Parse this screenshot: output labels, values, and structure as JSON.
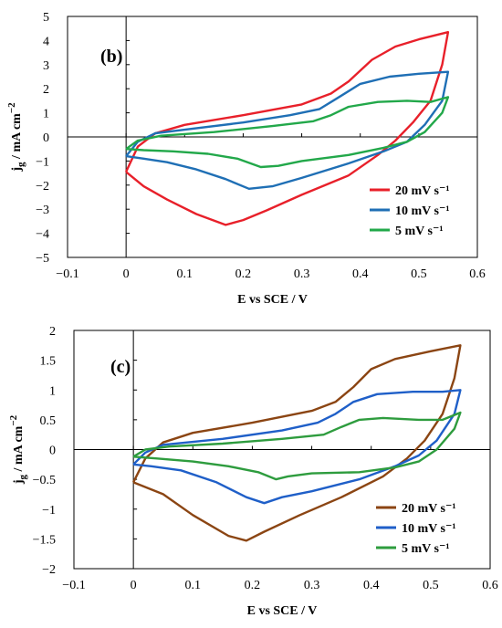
{
  "chart_data": [
    {
      "type": "line",
      "panel_label": "(b)",
      "xlabel": "E vs SCE / V",
      "ylabel_main": "j",
      "ylabel_sub": "g",
      "ylabel_rest": " / mA cm",
      "ylabel_sup": "−2",
      "xlim": [
        -0.1,
        0.6
      ],
      "ylim": [
        -5,
        5
      ],
      "xticks": [
        "−0.1",
        "0",
        "0.1",
        "0.2",
        "0.3",
        "0.4",
        "0.5",
        "0.6"
      ],
      "yticks": [
        "−5",
        "−4",
        "−3",
        "−2",
        "−1",
        "0",
        "1",
        "2",
        "3",
        "4",
        "5"
      ],
      "legend_position": "bottom-right",
      "series": [
        {
          "name": "20 mV s⁻¹",
          "color": "#e8202a",
          "points": [
            [
              0,
              -1.45
            ],
            [
              0.02,
              -0.4
            ],
            [
              0.05,
              0.15
            ],
            [
              0.1,
              0.5
            ],
            [
              0.2,
              0.9
            ],
            [
              0.3,
              1.35
            ],
            [
              0.35,
              1.8
            ],
            [
              0.38,
              2.3
            ],
            [
              0.42,
              3.2
            ],
            [
              0.46,
              3.75
            ],
            [
              0.5,
              4.05
            ],
            [
              0.55,
              4.35
            ],
            [
              0.54,
              3.0
            ],
            [
              0.52,
              1.5
            ],
            [
              0.49,
              0.6
            ],
            [
              0.46,
              -0.15
            ],
            [
              0.43,
              -0.75
            ],
            [
              0.38,
              -1.6
            ],
            [
              0.3,
              -2.4
            ],
            [
              0.24,
              -3.05
            ],
            [
              0.2,
              -3.45
            ],
            [
              0.17,
              -3.65
            ],
            [
              0.12,
              -3.2
            ],
            [
              0.07,
              -2.6
            ],
            [
              0.03,
              -2.05
            ],
            [
              0,
              -1.45
            ]
          ]
        },
        {
          "name": "10 mV s⁻¹",
          "color": "#1f6fb5",
          "points": [
            [
              0,
              -0.8
            ],
            [
              0.02,
              -0.2
            ],
            [
              0.05,
              0.15
            ],
            [
              0.1,
              0.3
            ],
            [
              0.2,
              0.6
            ],
            [
              0.28,
              0.9
            ],
            [
              0.33,
              1.15
            ],
            [
              0.36,
              1.6
            ],
            [
              0.4,
              2.2
            ],
            [
              0.45,
              2.5
            ],
            [
              0.5,
              2.62
            ],
            [
              0.55,
              2.7
            ],
            [
              0.54,
              1.5
            ],
            [
              0.51,
              0.5
            ],
            [
              0.48,
              -0.2
            ],
            [
              0.44,
              -0.6
            ],
            [
              0.38,
              -1.1
            ],
            [
              0.3,
              -1.7
            ],
            [
              0.25,
              -2.05
            ],
            [
              0.21,
              -2.15
            ],
            [
              0.17,
              -1.75
            ],
            [
              0.12,
              -1.35
            ],
            [
              0.07,
              -1.05
            ],
            [
              0.03,
              -0.9
            ],
            [
              0,
              -0.8
            ]
          ]
        },
        {
          "name": "5 mV s⁻¹",
          "color": "#22a84a",
          "points": [
            [
              0,
              -0.5
            ],
            [
              0.02,
              -0.15
            ],
            [
              0.06,
              0.05
            ],
            [
              0.15,
              0.2
            ],
            [
              0.25,
              0.45
            ],
            [
              0.32,
              0.65
            ],
            [
              0.35,
              0.9
            ],
            [
              0.38,
              1.25
            ],
            [
              0.43,
              1.45
            ],
            [
              0.48,
              1.5
            ],
            [
              0.52,
              1.45
            ],
            [
              0.55,
              1.65
            ],
            [
              0.54,
              1.0
            ],
            [
              0.51,
              0.2
            ],
            [
              0.48,
              -0.2
            ],
            [
              0.44,
              -0.45
            ],
            [
              0.38,
              -0.75
            ],
            [
              0.3,
              -1.0
            ],
            [
              0.26,
              -1.2
            ],
            [
              0.23,
              -1.25
            ],
            [
              0.19,
              -0.9
            ],
            [
              0.14,
              -0.7
            ],
            [
              0.08,
              -0.6
            ],
            [
              0.03,
              -0.55
            ],
            [
              0,
              -0.5
            ]
          ]
        }
      ]
    },
    {
      "type": "line",
      "panel_label": "(c)",
      "xlabel": "E vs SCE / V",
      "ylabel_main": "j",
      "ylabel_sub": "g",
      "ylabel_rest": " / mA cm",
      "ylabel_sup": "−2",
      "xlim": [
        -0.1,
        0.6
      ],
      "ylim": [
        -2,
        2
      ],
      "xticks": [
        "−0.1",
        "0",
        "0.1",
        "0.2",
        "0.3",
        "0.4",
        "0.5",
        "0.6"
      ],
      "yticks": [
        "−2",
        "−1.5",
        "−1",
        "−0.5",
        "0",
        "0.5",
        "1",
        "1.5",
        "2"
      ],
      "legend_position": "bottom-right",
      "series": [
        {
          "name": "20 mV s⁻¹",
          "color": "#8b4513",
          "points": [
            [
              0,
              -0.55
            ],
            [
              0.02,
              -0.15
            ],
            [
              0.05,
              0.12
            ],
            [
              0.1,
              0.28
            ],
            [
              0.2,
              0.45
            ],
            [
              0.3,
              0.65
            ],
            [
              0.34,
              0.8
            ],
            [
              0.37,
              1.05
            ],
            [
              0.4,
              1.35
            ],
            [
              0.44,
              1.52
            ],
            [
              0.5,
              1.65
            ],
            [
              0.55,
              1.75
            ],
            [
              0.54,
              1.2
            ],
            [
              0.52,
              0.6
            ],
            [
              0.49,
              0.15
            ],
            [
              0.46,
              -0.15
            ],
            [
              0.42,
              -0.45
            ],
            [
              0.35,
              -0.8
            ],
            [
              0.28,
              -1.1
            ],
            [
              0.22,
              -1.38
            ],
            [
              0.19,
              -1.53
            ],
            [
              0.16,
              -1.45
            ],
            [
              0.1,
              -1.1
            ],
            [
              0.05,
              -0.75
            ],
            [
              0,
              -0.55
            ]
          ]
        },
        {
          "name": "10 mV s⁻¹",
          "color": "#1f5fc8",
          "points": [
            [
              0,
              -0.25
            ],
            [
              0.02,
              -0.05
            ],
            [
              0.05,
              0.08
            ],
            [
              0.15,
              0.18
            ],
            [
              0.25,
              0.32
            ],
            [
              0.31,
              0.45
            ],
            [
              0.34,
              0.6
            ],
            [
              0.37,
              0.8
            ],
            [
              0.41,
              0.93
            ],
            [
              0.47,
              0.97
            ],
            [
              0.52,
              0.97
            ],
            [
              0.55,
              1.0
            ],
            [
              0.54,
              0.6
            ],
            [
              0.51,
              0.15
            ],
            [
              0.48,
              -0.1
            ],
            [
              0.44,
              -0.28
            ],
            [
              0.38,
              -0.5
            ],
            [
              0.3,
              -0.7
            ],
            [
              0.25,
              -0.8
            ],
            [
              0.22,
              -0.9
            ],
            [
              0.19,
              -0.8
            ],
            [
              0.14,
              -0.55
            ],
            [
              0.08,
              -0.35
            ],
            [
              0.03,
              -0.28
            ],
            [
              0,
              -0.25
            ]
          ]
        },
        {
          "name": "5 mV s⁻¹",
          "color": "#2e9c3e",
          "points": [
            [
              0,
              -0.12
            ],
            [
              0.02,
              0.0
            ],
            [
              0.06,
              0.05
            ],
            [
              0.15,
              0.1
            ],
            [
              0.25,
              0.18
            ],
            [
              0.32,
              0.25
            ],
            [
              0.35,
              0.38
            ],
            [
              0.38,
              0.5
            ],
            [
              0.42,
              0.53
            ],
            [
              0.48,
              0.5
            ],
            [
              0.52,
              0.5
            ],
            [
              0.55,
              0.62
            ],
            [
              0.54,
              0.35
            ],
            [
              0.51,
              0.0
            ],
            [
              0.48,
              -0.2
            ],
            [
              0.44,
              -0.3
            ],
            [
              0.38,
              -0.38
            ],
            [
              0.3,
              -0.4
            ],
            [
              0.26,
              -0.45
            ],
            [
              0.24,
              -0.5
            ],
            [
              0.21,
              -0.38
            ],
            [
              0.16,
              -0.28
            ],
            [
              0.1,
              -0.2
            ],
            [
              0.04,
              -0.15
            ],
            [
              0,
              -0.12
            ]
          ]
        }
      ]
    }
  ]
}
